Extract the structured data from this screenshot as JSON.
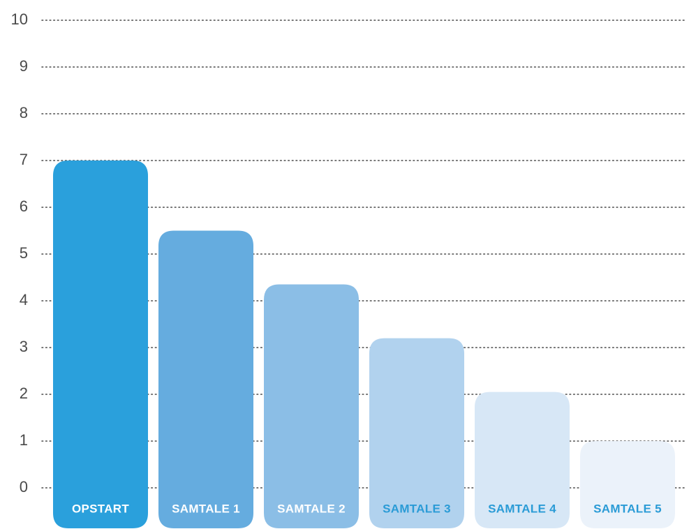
{
  "chart_data": {
    "type": "bar",
    "categories": [
      "OPSTART",
      "SAMTALE 1",
      "SAMTALE 2",
      "SAMTALE 3",
      "SAMTALE 4",
      "SAMTALE 5"
    ],
    "values": [
      7,
      5.5,
      4.35,
      3.2,
      2.05,
      1
    ],
    "y_ticks": [
      "0",
      "1",
      "2",
      "3",
      "4",
      "5",
      "6",
      "7",
      "8",
      "9",
      "10"
    ],
    "ylim": [
      0,
      10
    ],
    "grid": true,
    "title": "",
    "xlabel": "",
    "ylabel": "",
    "bar_colors": [
      "#2aa0dc",
      "#65acdf",
      "#8bbee6",
      "#b1d2ee",
      "#d7e7f6",
      "#ebf2fa"
    ],
    "label_colors": [
      "#ffffff",
      "#ffffff",
      "#ffffff",
      "#2a9bd6",
      "#2a9bd6",
      "#2a9bd6"
    ]
  }
}
